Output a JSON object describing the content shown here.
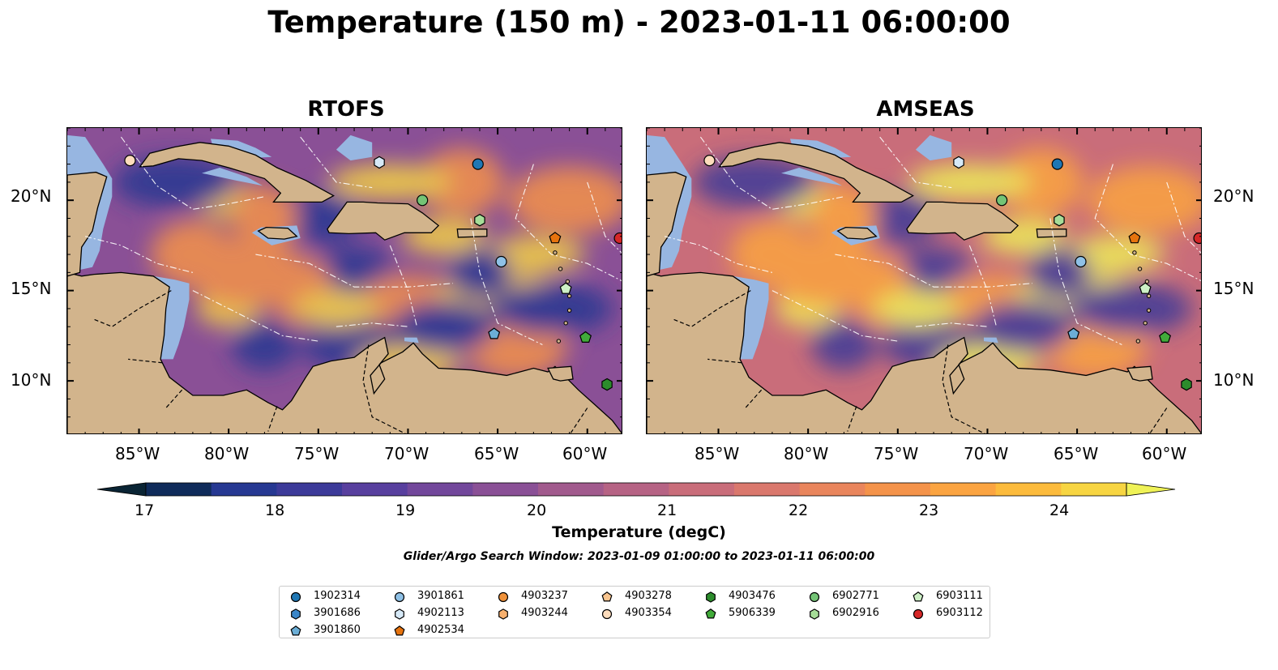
{
  "title": "Temperature (150 m) - 2023-01-11 06:00:00",
  "panels": [
    {
      "title": "RTOFS"
    },
    {
      "title": "AMSEAS"
    }
  ],
  "axes": {
    "lon_labels": [
      "85°W",
      "80°W",
      "75°W",
      "70°W",
      "65°W",
      "60°W"
    ],
    "lat_labels": [
      "20°N",
      "15°N",
      "10°N"
    ],
    "lon_range": [
      -89,
      -58
    ],
    "lat_range": [
      7,
      24
    ]
  },
  "colorbar": {
    "label": "Temperature (degC)",
    "ticks": [
      "17",
      "18",
      "19",
      "20",
      "21",
      "22",
      "23",
      "24"
    ],
    "range": [
      17,
      24.5
    ],
    "step": 0.5,
    "colors": [
      "#0a2434",
      "#0f2b5a",
      "#263892",
      "#3c3a99",
      "#583f9e",
      "#72479b",
      "#8a5096",
      "#a15a8d",
      "#b66384",
      "#c96d7a",
      "#da786d",
      "#e9855c",
      "#f4934a",
      "#fba441",
      "#fcbb3c",
      "#f7d542",
      "#eff257"
    ],
    "extend": "both"
  },
  "search_window": "Glider/Argo Search Window: 2023-01-09 01:00:00 to 2023-01-11 06:00:00",
  "legend": [
    {
      "id": "1902314",
      "marker": "circle",
      "color": "#1f77b4"
    },
    {
      "id": "3901686",
      "marker": "hexagon",
      "color": "#3a86c8"
    },
    {
      "id": "3901860",
      "marker": "pentagon",
      "color": "#6baed6"
    },
    {
      "id": "3901861",
      "marker": "circle",
      "color": "#8fc1e6"
    },
    {
      "id": "4902113",
      "marker": "hexagon",
      "color": "#d6e9f7"
    },
    {
      "id": "4902534",
      "marker": "pentagon",
      "color": "#e6730e"
    },
    {
      "id": "4903237",
      "marker": "circle",
      "color": "#f0923a"
    },
    {
      "id": "4903244",
      "marker": "hexagon",
      "color": "#f7b06e"
    },
    {
      "id": "4903278",
      "marker": "pentagon",
      "color": "#f9c58f"
    },
    {
      "id": "4903354",
      "marker": "circle",
      "color": "#fddcbc"
    },
    {
      "id": "4903476",
      "marker": "hexagon",
      "color": "#2c8c2c"
    },
    {
      "id": "5906339",
      "marker": "pentagon",
      "color": "#41ab3a"
    },
    {
      "id": "6902771",
      "marker": "circle",
      "color": "#74c476"
    },
    {
      "id": "6902916",
      "marker": "hexagon",
      "color": "#a6dd98"
    },
    {
      "id": "6903111",
      "marker": "pentagon",
      "color": "#cdf0c6"
    },
    {
      "id": "6903112",
      "marker": "circle",
      "color": "#d62728"
    }
  ],
  "floats": [
    {
      "id": "4903354",
      "lon": -85.5,
      "lat": 22.2
    },
    {
      "id": "4902113",
      "lon": -71.6,
      "lat": 22.1
    },
    {
      "id": "1902314",
      "lon": -66.1,
      "lat": 22.0
    },
    {
      "id": "6902771",
      "lon": -69.2,
      "lat": 20.0
    },
    {
      "id": "6902916",
      "lon": -66.0,
      "lat": 18.9
    },
    {
      "id": "4902534",
      "lon": -61.8,
      "lat": 17.9
    },
    {
      "id": "3901861",
      "lon": -64.8,
      "lat": 16.6
    },
    {
      "id": "6903111",
      "lon": -61.2,
      "lat": 15.1
    },
    {
      "id": "3901860",
      "lon": -65.2,
      "lat": 12.6
    },
    {
      "id": "5906339",
      "lon": -60.1,
      "lat": 12.4
    },
    {
      "id": "4903476",
      "lon": -58.9,
      "lat": 9.8
    }
  ],
  "field_colors": {
    "rtofs": {
      "base": "#8a5096",
      "warm": "#f4934a",
      "hot": "#f7d542",
      "cold": "#263892",
      "deep": "#0a2434"
    },
    "amseas": {
      "base": "#c96d7a",
      "warm": "#fba441",
      "hot": "#eff257",
      "cold": "#3c3a99",
      "deep": "#0a2434"
    }
  },
  "land_color": "#d2b48c",
  "shelf_color": "#97b6e1"
}
